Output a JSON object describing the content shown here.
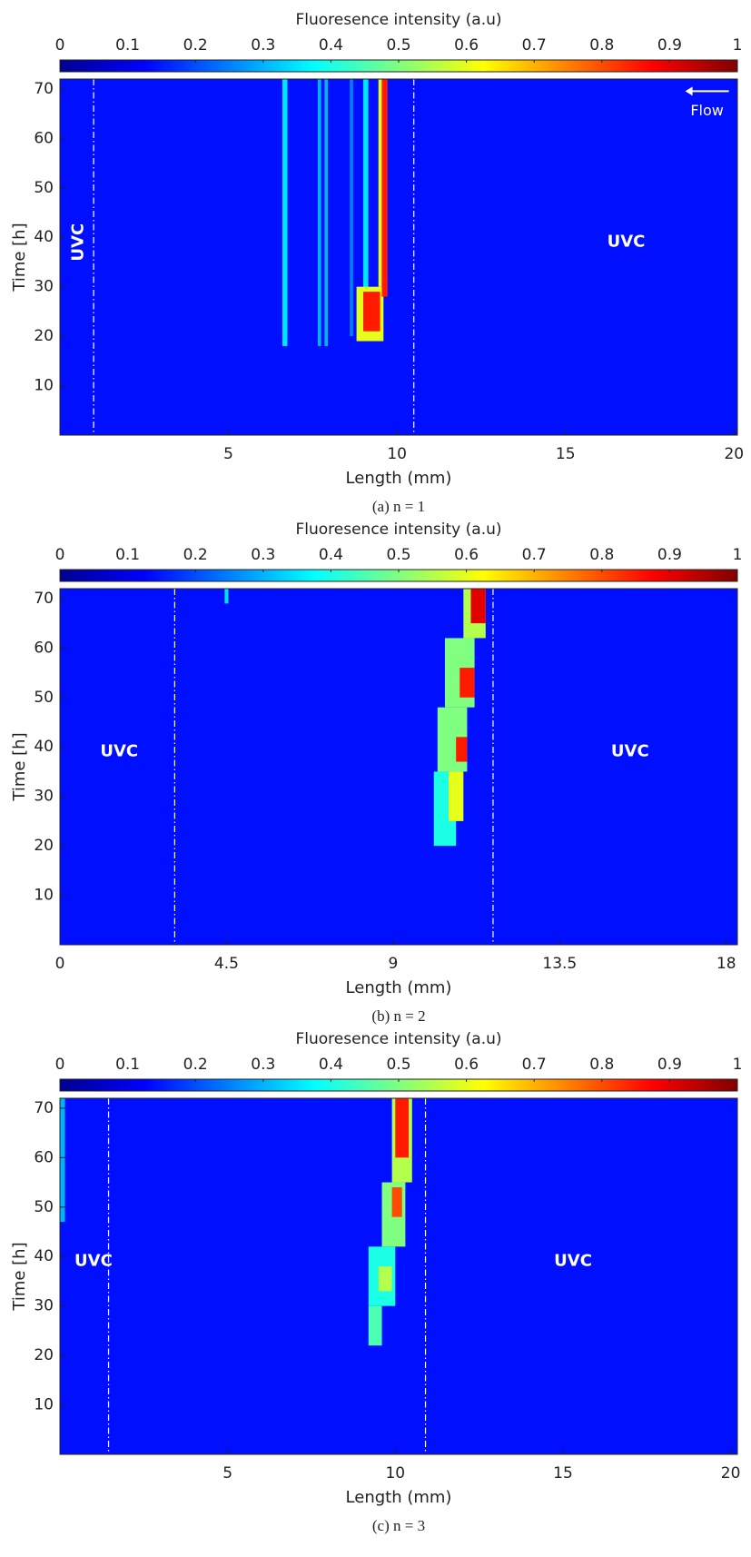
{
  "chart_data": [
    {
      "type": "heatmap",
      "colorbar_label": "Fluoresence intensity (a.u)",
      "clim": [
        0,
        1
      ],
      "cticks": [
        0,
        0.1,
        0.2,
        0.3,
        0.4,
        0.5,
        0.6,
        0.7,
        0.8,
        0.9,
        1
      ],
      "xlabel": "Length (mm)",
      "ylabel": "Time [h]",
      "xlim": [
        0,
        20.1
      ],
      "ylim": [
        0,
        72
      ],
      "xticks": [
        5,
        10,
        15,
        20
      ],
      "yticks": [
        10,
        20,
        30,
        40,
        50,
        60,
        70
      ],
      "caption": "(a) n = 1",
      "background": 0.14,
      "dashed_lines": [
        1.0,
        10.5
      ],
      "annotations": [
        {
          "text": "UVC",
          "x": 0.55,
          "y": 39,
          "rotated": true
        },
        {
          "text": "UVC",
          "x": 16.8,
          "y": 39
        },
        {
          "text": "Flow",
          "x": 19.2,
          "y": 65.5,
          "arrow": "left"
        }
      ],
      "cells": [
        {
          "x": [
            6.6,
            6.75
          ],
          "y": [
            18,
            72
          ],
          "value": 0.35
        },
        {
          "x": [
            7.65,
            7.75
          ],
          "y": [
            18,
            72
          ],
          "value": 0.3
        },
        {
          "x": [
            7.85,
            7.95
          ],
          "y": [
            18,
            72
          ],
          "value": 0.3
        },
        {
          "x": [
            8.6,
            8.7
          ],
          "y": [
            20,
            72
          ],
          "value": 0.25
        },
        {
          "x": [
            9.0,
            9.15
          ],
          "y": [
            20,
            72
          ],
          "value": 0.35
        },
        {
          "x": [
            8.8,
            9.6
          ],
          "y": [
            19,
            30
          ],
          "value": 0.6
        },
        {
          "x": [
            9.0,
            9.5
          ],
          "y": [
            21,
            29
          ],
          "value": 0.85
        },
        {
          "x": [
            9.45,
            9.55
          ],
          "y": [
            30,
            72
          ],
          "value": 0.6
        },
        {
          "x": [
            9.55,
            9.72
          ],
          "y": [
            28,
            72
          ],
          "value": 0.85
        }
      ]
    },
    {
      "type": "heatmap",
      "colorbar_label": "Fluoresence intensity (a.u)",
      "clim": [
        0,
        1
      ],
      "cticks": [
        0,
        0.1,
        0.2,
        0.3,
        0.4,
        0.5,
        0.6,
        0.7,
        0.8,
        0.9,
        1
      ],
      "xlabel": "Length (mm)",
      "ylabel": "Time [h]",
      "xlim": [
        0,
        18.3
      ],
      "ylim": [
        0,
        72
      ],
      "xticks": [
        0,
        4.5,
        9,
        13.5,
        18
      ],
      "yticks": [
        10,
        20,
        30,
        40,
        50,
        60,
        70
      ],
      "caption": "(b) n = 2",
      "background": 0.14,
      "dashed_lines": [
        3.1,
        11.7
      ],
      "annotations": [
        {
          "text": "UVC",
          "x": 1.6,
          "y": 39
        },
        {
          "text": "UVC",
          "x": 15.4,
          "y": 39
        }
      ],
      "cells": [
        {
          "x": [
            4.45,
            4.55
          ],
          "y": [
            69,
            72
          ],
          "value": 0.35
        },
        {
          "x": [
            10.1,
            10.7
          ],
          "y": [
            20,
            35
          ],
          "value": 0.4
        },
        {
          "x": [
            10.5,
            10.9
          ],
          "y": [
            25,
            35
          ],
          "value": 0.6
        },
        {
          "x": [
            10.2,
            11.0
          ],
          "y": [
            35,
            48
          ],
          "value": 0.5
        },
        {
          "x": [
            10.7,
            11.0
          ],
          "y": [
            37,
            42
          ],
          "value": 0.85
        },
        {
          "x": [
            10.4,
            11.2
          ],
          "y": [
            48,
            62
          ],
          "value": 0.5
        },
        {
          "x": [
            10.8,
            11.2
          ],
          "y": [
            50,
            56
          ],
          "value": 0.85
        },
        {
          "x": [
            10.9,
            11.5
          ],
          "y": [
            62,
            72
          ],
          "value": 0.55
        },
        {
          "x": [
            11.1,
            11.5
          ],
          "y": [
            65,
            72
          ],
          "value": 0.9
        }
      ]
    },
    {
      "type": "heatmap",
      "colorbar_label": "Fluoresence intensity (a.u)",
      "clim": [
        0,
        1
      ],
      "cticks": [
        0,
        0.1,
        0.2,
        0.3,
        0.4,
        0.5,
        0.6,
        0.7,
        0.8,
        0.9,
        1
      ],
      "xlabel": "Length (mm)",
      "ylabel": "Time [h]",
      "xlim": [
        0,
        20.2
      ],
      "ylim": [
        0,
        72
      ],
      "xticks": [
        5,
        10,
        15,
        20
      ],
      "yticks": [
        10,
        20,
        30,
        40,
        50,
        60,
        70
      ],
      "caption": "(c) n = 3",
      "background": 0.14,
      "dashed_lines": [
        1.45,
        10.9
      ],
      "annotations": [
        {
          "text": "UVC",
          "x": 1.0,
          "y": 39
        },
        {
          "text": "UVC",
          "x": 15.3,
          "y": 39
        }
      ],
      "cells": [
        {
          "x": [
            0,
            0.15
          ],
          "y": [
            47,
            72
          ],
          "value": 0.3
        },
        {
          "x": [
            9.2,
            9.6
          ],
          "y": [
            22,
            30
          ],
          "value": 0.45
        },
        {
          "x": [
            9.2,
            10.0
          ],
          "y": [
            30,
            42
          ],
          "value": 0.4
        },
        {
          "x": [
            9.5,
            9.9
          ],
          "y": [
            33,
            38
          ],
          "value": 0.55
        },
        {
          "x": [
            9.6,
            10.3
          ],
          "y": [
            42,
            55
          ],
          "value": 0.5
        },
        {
          "x": [
            9.9,
            10.2
          ],
          "y": [
            48,
            54
          ],
          "value": 0.8
        },
        {
          "x": [
            9.9,
            10.5
          ],
          "y": [
            55,
            72
          ],
          "value": 0.55
        },
        {
          "x": [
            10.0,
            10.4
          ],
          "y": [
            60,
            72
          ],
          "value": 0.85
        }
      ]
    }
  ]
}
